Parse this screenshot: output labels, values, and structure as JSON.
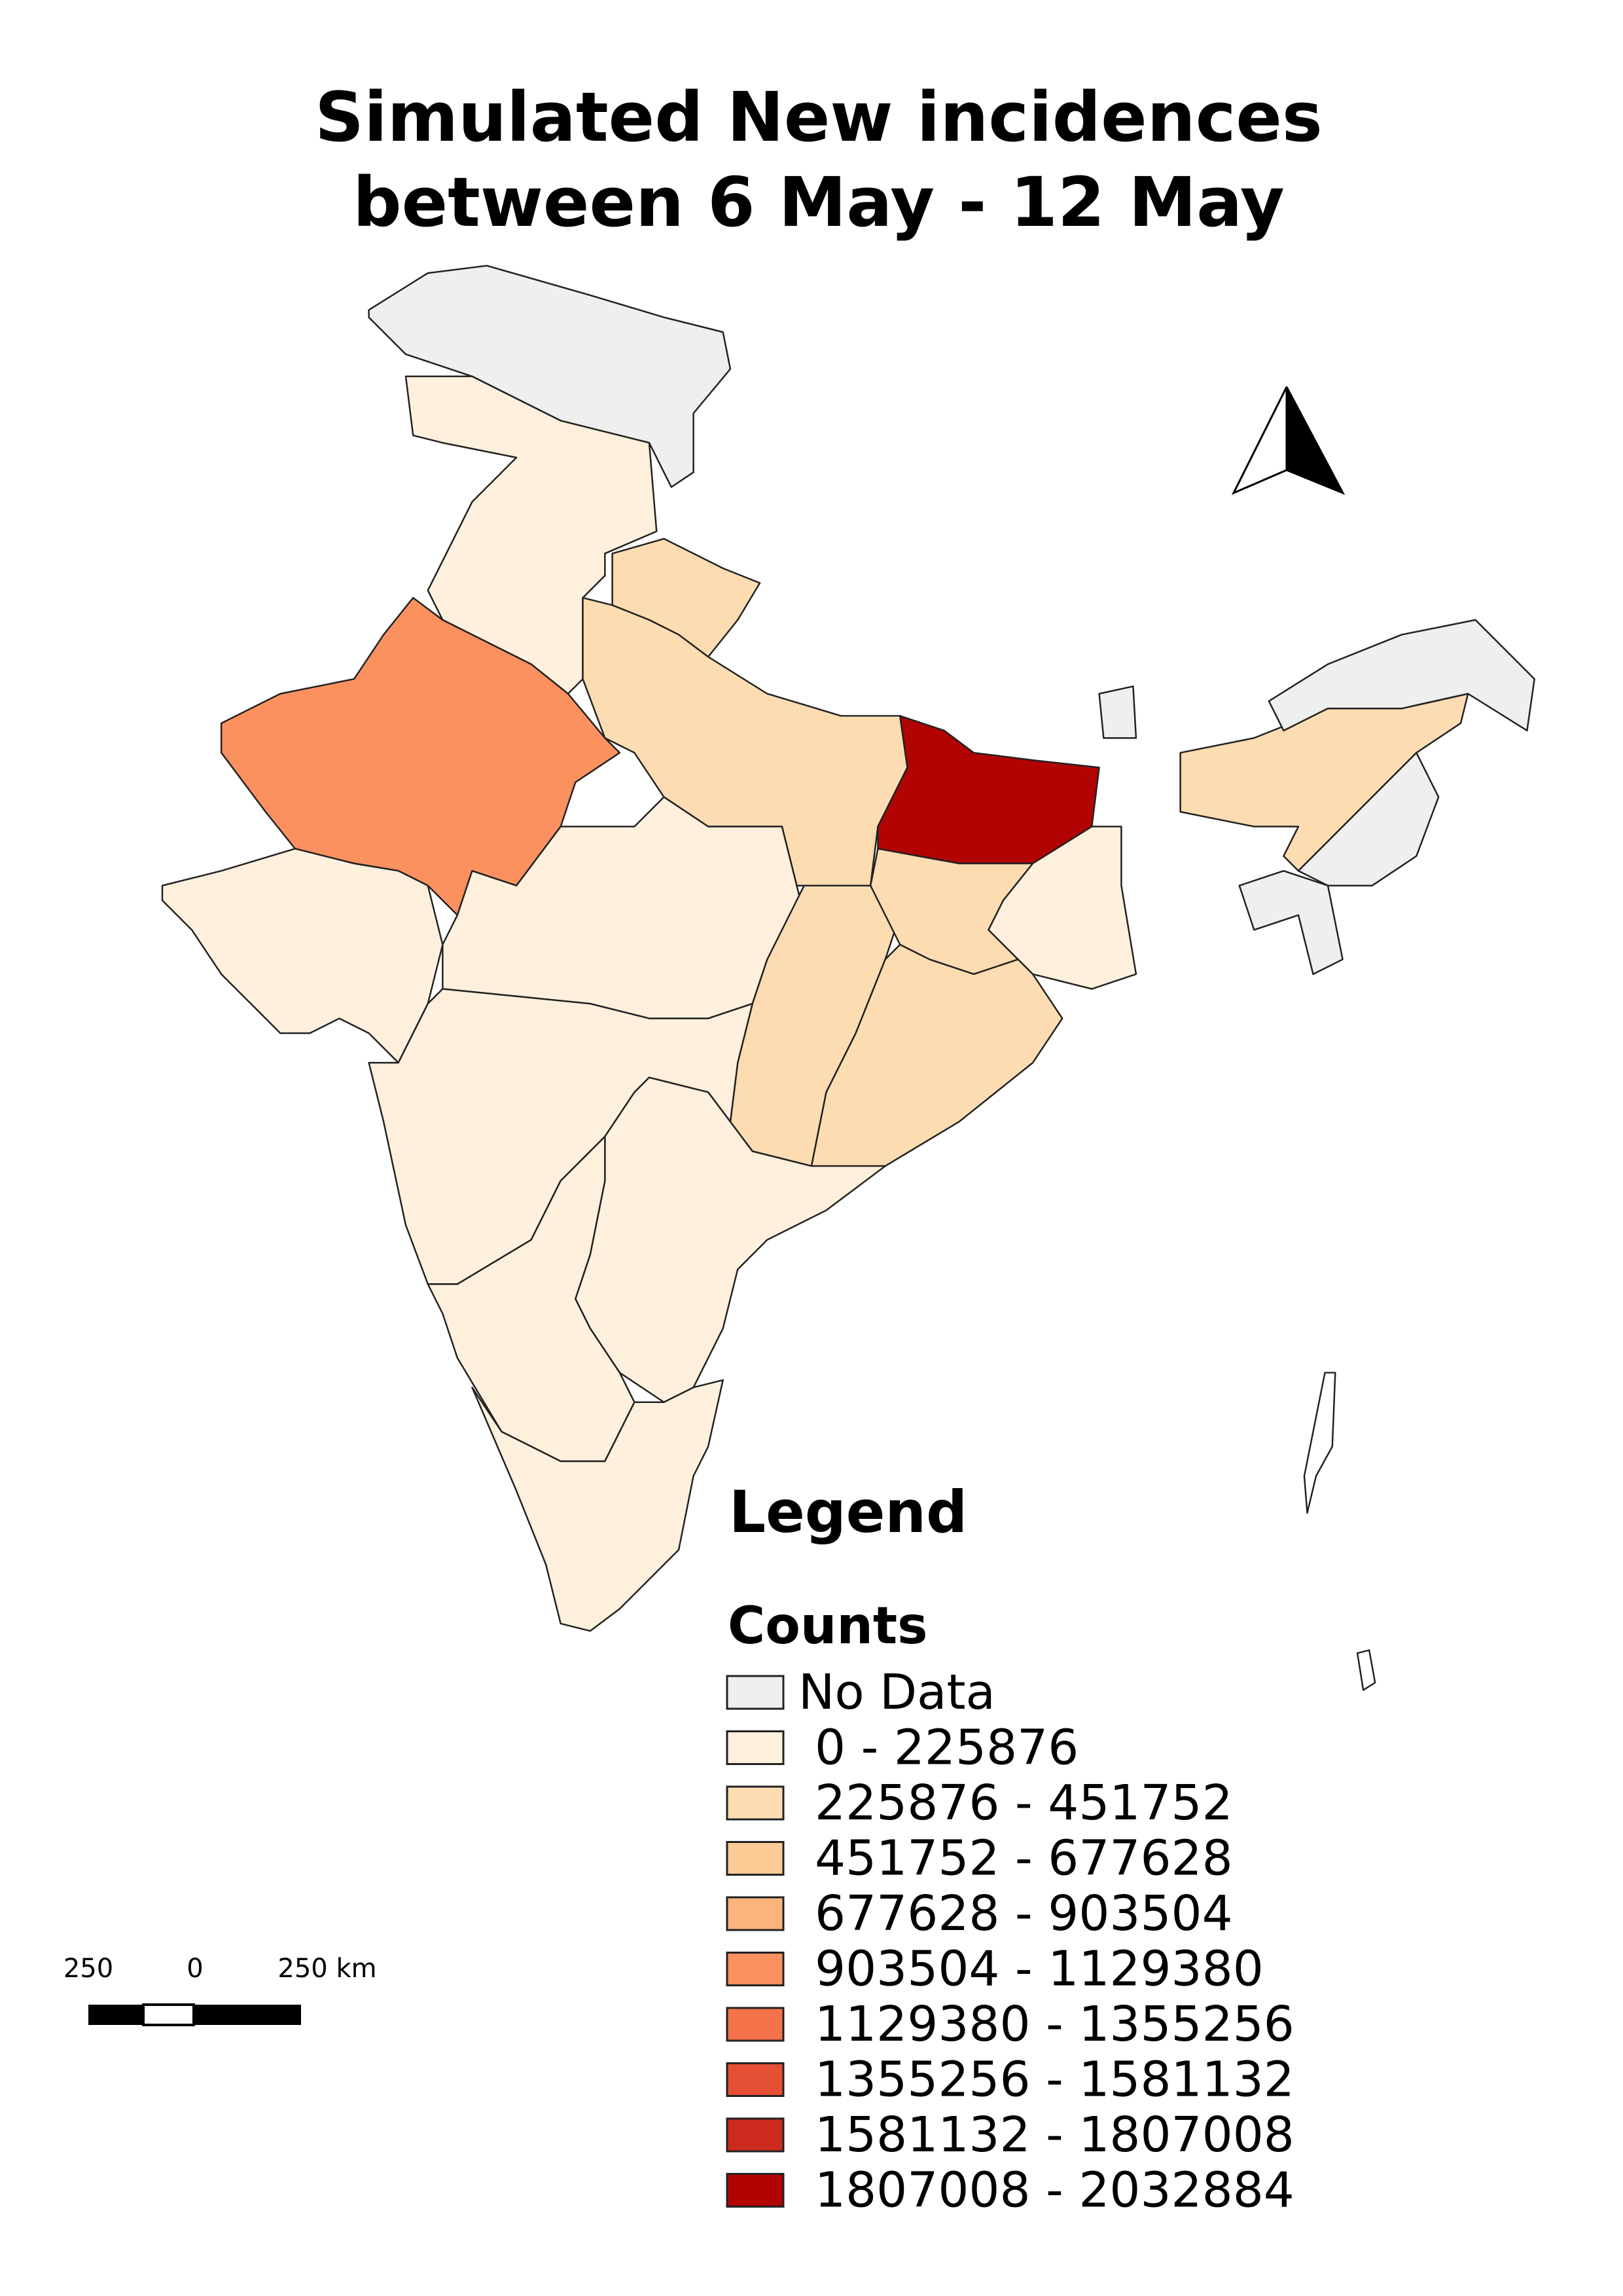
{
  "title_lines": [
    "Simulated New incidences",
    "between 6 May - 12 May"
  ],
  "legend": {
    "title": "Legend",
    "subtitle": "Counts",
    "items": [
      {
        "label": "No Data",
        "color": "#eeefee"
      },
      {
        "label": "0 - 225876",
        "color": "#fef0dd"
      },
      {
        "label": "225876 - 451752",
        "color": "#fddcb2"
      },
      {
        "label": "451752 - 677628",
        "color": "#fdcb95"
      },
      {
        "label": "677628 - 903504",
        "color": "#fdb47c"
      },
      {
        "label": "903504 - 1129380",
        "color": "#fc9160"
      },
      {
        "label": "1129380 - 1355256",
        "color": "#f4734a"
      },
      {
        "label": "1355256 - 1581132",
        "color": "#e54f34"
      },
      {
        "label": "1581132 - 1807008",
        "color": "#cc2a1d"
      },
      {
        "label": "1807008 - 2032884",
        "color": "#b20303"
      }
    ]
  },
  "scale_bar": {
    "labels": [
      "250",
      "0",
      "250 km"
    ]
  }
}
